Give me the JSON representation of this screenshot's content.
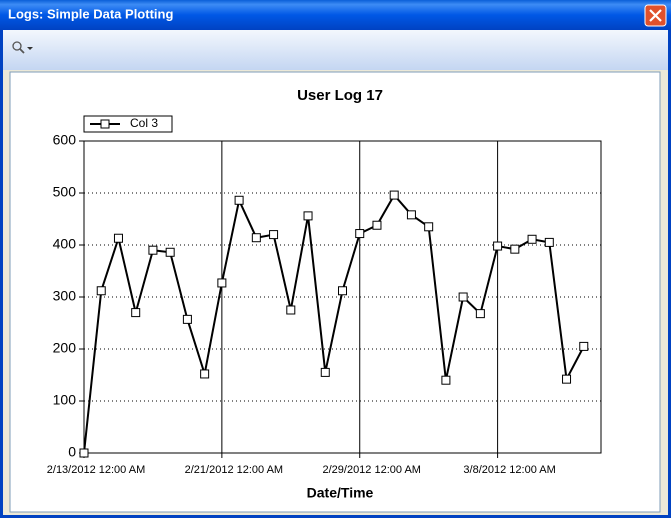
{
  "window": {
    "title": "Logs: Simple Data Plotting"
  },
  "chart_data": {
    "type": "line",
    "title": "User Log 17",
    "x_label": "Date/Time",
    "x": [
      "2012-02-13T00:00",
      "2012-02-14T00:00",
      "2012-02-15T00:00",
      "2012-02-16T00:00",
      "2012-02-17T00:00",
      "2012-02-18T00:00",
      "2012-02-19T00:00",
      "2012-02-20T00:00",
      "2012-02-21T00:00",
      "2012-02-22T00:00",
      "2012-02-23T00:00",
      "2012-02-24T00:00",
      "2012-02-25T00:00",
      "2012-02-26T00:00",
      "2012-02-27T00:00",
      "2012-02-28T00:00",
      "2012-02-29T00:00",
      "2012-03-01T00:00",
      "2012-03-02T00:00",
      "2012-03-03T00:00",
      "2012-03-04T00:00",
      "2012-03-05T00:00",
      "2012-03-06T00:00",
      "2012-03-07T00:00",
      "2012-03-08T00:00",
      "2012-03-09T00:00",
      "2012-03-10T00:00",
      "2012-03-11T00:00",
      "2012-03-12T00:00",
      "2012-03-13T00:00"
    ],
    "series": [
      {
        "name": "Col 3",
        "color": "#000000",
        "marker": "square",
        "values": [
          0,
          312,
          413,
          270,
          390,
          386,
          257,
          152,
          327,
          486,
          414,
          420,
          275,
          456,
          155,
          312,
          422,
          438,
          496,
          458,
          435,
          140,
          300,
          268,
          398,
          392,
          411,
          405,
          142,
          205
        ]
      }
    ],
    "xlim": [
      "2012-02-13T00:00",
      "2012-03-14T00:00"
    ],
    "xticks": [
      {
        "value": "2012-02-13T00:00",
        "label": "2/13/2012 12:00 AM"
      },
      {
        "value": "2012-02-21T00:00",
        "label": "2/21/2012 12:00 AM"
      },
      {
        "value": "2012-02-29T00:00",
        "label": "2/29/2012 12:00 AM"
      },
      {
        "value": "2012-03-08T00:00",
        "label": "3/8/2012 12:00 AM"
      }
    ],
    "ylim": [
      0,
      600
    ],
    "yticks": [
      0,
      100,
      200,
      300,
      400,
      500,
      600
    ],
    "legend": "top-left"
  }
}
